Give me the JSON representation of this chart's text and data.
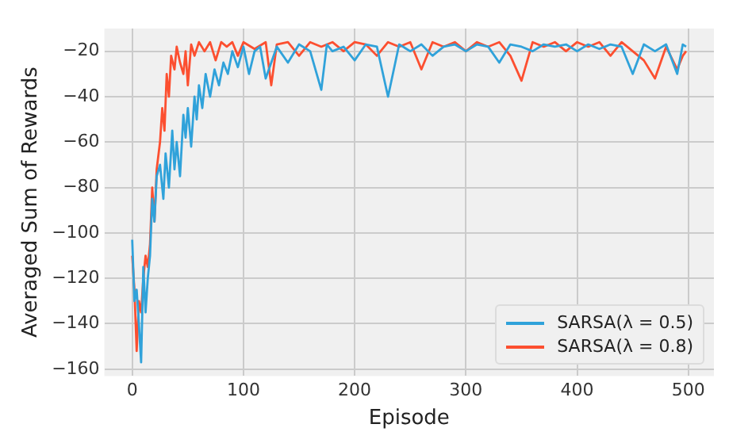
{
  "chart_data": {
    "type": "line",
    "xlabel": "Episode",
    "ylabel": "Averaged Sum of Rewards",
    "xlim": [
      -25,
      523
    ],
    "ylim": [
      -163,
      -10
    ],
    "xticks": [
      0,
      100,
      200,
      300,
      400,
      500
    ],
    "yticks": [
      -160,
      -140,
      -120,
      -100,
      -80,
      -60,
      -40,
      -20
    ],
    "grid": true,
    "legend": "bottom right",
    "marker": "none",
    "line_style": "solid",
    "series": [
      {
        "name": "SARSA(λ = 0.5)",
        "color": "#30a2da",
        "x": [
          0,
          2,
          4,
          6,
          8,
          10,
          12,
          14,
          16,
          18,
          20,
          22,
          25,
          28,
          30,
          33,
          36,
          38,
          40,
          43,
          46,
          48,
          50,
          53,
          56,
          58,
          60,
          63,
          66,
          70,
          74,
          78,
          82,
          86,
          90,
          95,
          100,
          105,
          110,
          115,
          120,
          130,
          140,
          150,
          160,
          170,
          175,
          180,
          190,
          200,
          210,
          220,
          230,
          240,
          250,
          260,
          270,
          280,
          290,
          300,
          310,
          320,
          330,
          340,
          350,
          360,
          370,
          380,
          390,
          400,
          410,
          420,
          430,
          440,
          450,
          460,
          470,
          480,
          490,
          495,
          498
        ],
        "values": [
          -103,
          -130,
          -125,
          -140,
          -157,
          -115,
          -135,
          -120,
          -110,
          -85,
          -95,
          -75,
          -70,
          -85,
          -65,
          -80,
          -55,
          -72,
          -60,
          -75,
          -48,
          -58,
          -45,
          -62,
          -40,
          -50,
          -35,
          -45,
          -30,
          -40,
          -28,
          -35,
          -25,
          -30,
          -20,
          -27,
          -18,
          -30,
          -20,
          -18,
          -32,
          -18,
          -25,
          -17,
          -20,
          -37,
          -17,
          -20,
          -18,
          -24,
          -17,
          -18,
          -40,
          -17,
          -20,
          -17,
          -22,
          -18,
          -17,
          -20,
          -17,
          -18,
          -25,
          -17,
          -18,
          -20,
          -17,
          -18,
          -17,
          -20,
          -17,
          -19,
          -17,
          -18,
          -30,
          -17,
          -20,
          -17,
          -30,
          -17,
          -18
        ]
      },
      {
        "name": "SARSA(λ = 0.8)",
        "color": "#fc4f30",
        "x": [
          0,
          2,
          4,
          6,
          8,
          10,
          12,
          14,
          16,
          18,
          20,
          22,
          25,
          27,
          29,
          31,
          33,
          35,
          38,
          40,
          43,
          46,
          48,
          50,
          53,
          56,
          60,
          65,
          70,
          75,
          80,
          85,
          90,
          95,
          100,
          110,
          120,
          125,
          130,
          140,
          150,
          160,
          170,
          180,
          190,
          200,
          210,
          220,
          230,
          240,
          250,
          260,
          270,
          280,
          290,
          300,
          310,
          320,
          330,
          340,
          350,
          360,
          370,
          380,
          390,
          400,
          410,
          420,
          430,
          440,
          450,
          460,
          470,
          480,
          490,
          495,
          498
        ],
        "values": [
          -110,
          -125,
          -152,
          -130,
          -135,
          -120,
          -110,
          -115,
          -105,
          -80,
          -95,
          -72,
          -60,
          -45,
          -55,
          -30,
          -40,
          -22,
          -28,
          -18,
          -25,
          -30,
          -20,
          -35,
          -17,
          -22,
          -16,
          -20,
          -16,
          -24,
          -16,
          -18,
          -16,
          -22,
          -16,
          -19,
          -16,
          -35,
          -17,
          -16,
          -22,
          -16,
          -18,
          -16,
          -20,
          -16,
          -17,
          -22,
          -16,
          -18,
          -16,
          -28,
          -16,
          -18,
          -16,
          -20,
          -16,
          -18,
          -16,
          -22,
          -33,
          -16,
          -18,
          -16,
          -20,
          -16,
          -18,
          -16,
          -22,
          -16,
          -20,
          -24,
          -32,
          -18,
          -28,
          -22,
          -20
        ]
      }
    ]
  }
}
